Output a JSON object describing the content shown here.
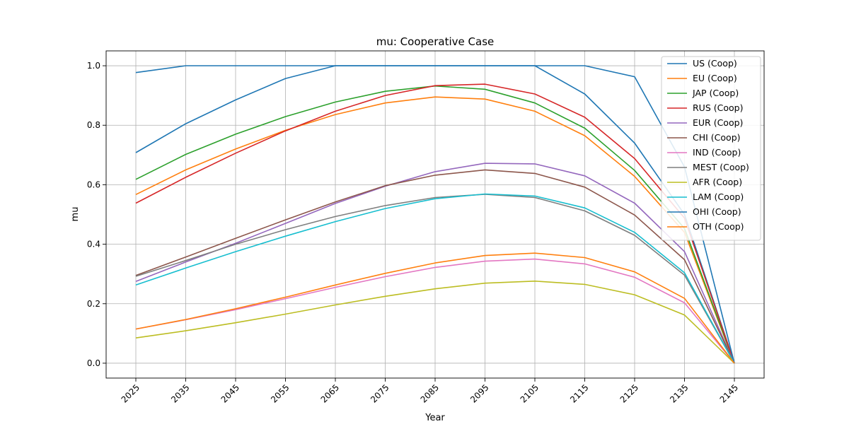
{
  "chart_data": {
    "type": "line",
    "title": "mu: Cooperative Case",
    "xlabel": "Year",
    "ylabel": "mu",
    "x": [
      2025,
      2035,
      2045,
      2055,
      2065,
      2075,
      2085,
      2095,
      2105,
      2115,
      2125,
      2135,
      2145
    ],
    "ylim": [
      -0.05,
      1.05
    ],
    "yticks": [
      0.0,
      0.2,
      0.4,
      0.6,
      0.8,
      1.0
    ],
    "ytick_labels": [
      "0.0",
      "0.2",
      "0.4",
      "0.6",
      "0.8",
      "1.0"
    ],
    "xtick_labels": [
      "2025",
      "2035",
      "2045",
      "2055",
      "2065",
      "2075",
      "2085",
      "2095",
      "2105",
      "2115",
      "2125",
      "2135",
      "2145"
    ],
    "grid": true,
    "legend_position": "top-right",
    "series": [
      {
        "name": "US (Coop)",
        "color": "#1f77b4",
        "values": [
          0.708,
          0.805,
          0.885,
          0.957,
          1.0,
          1.0,
          1.0,
          1.0,
          1.0,
          0.905,
          0.74,
          0.5,
          0.0
        ]
      },
      {
        "name": "EU (Coop)",
        "color": "#ff7f0e",
        "values": [
          0.567,
          0.65,
          0.72,
          0.783,
          0.836,
          0.875,
          0.895,
          0.888,
          0.847,
          0.765,
          0.628,
          0.44,
          0.0
        ]
      },
      {
        "name": "JAP (Coop)",
        "color": "#2ca02c",
        "values": [
          0.618,
          0.702,
          0.77,
          0.829,
          0.878,
          0.914,
          0.932,
          0.921,
          0.875,
          0.79,
          0.648,
          0.453,
          0.0
        ]
      },
      {
        "name": "RUS (Coop)",
        "color": "#d62728",
        "values": [
          0.538,
          0.625,
          0.706,
          0.781,
          0.847,
          0.9,
          0.933,
          0.938,
          0.905,
          0.827,
          0.688,
          0.488,
          0.0
        ]
      },
      {
        "name": "EUR (Coop)",
        "color": "#9467bd",
        "values": [
          0.275,
          0.34,
          0.403,
          0.47,
          0.537,
          0.595,
          0.644,
          0.672,
          0.67,
          0.63,
          0.538,
          0.375,
          0.0
        ]
      },
      {
        "name": "CHI (Coop)",
        "color": "#8c564b",
        "values": [
          0.295,
          0.357,
          0.42,
          0.482,
          0.542,
          0.597,
          0.632,
          0.65,
          0.638,
          0.592,
          0.498,
          0.348,
          0.0
        ]
      },
      {
        "name": "IND (Coop)",
        "color": "#e377c2",
        "values": [
          0.115,
          0.146,
          0.18,
          0.217,
          0.255,
          0.291,
          0.322,
          0.343,
          0.35,
          0.334,
          0.289,
          0.203,
          0.0
        ]
      },
      {
        "name": "MEST (Coop)",
        "color": "#7f7f7f",
        "values": [
          0.292,
          0.345,
          0.4,
          0.449,
          0.493,
          0.53,
          0.557,
          0.568,
          0.557,
          0.512,
          0.43,
          0.296,
          0.0
        ]
      },
      {
        "name": "AFR (Coop)",
        "color": "#bcbd22",
        "values": [
          0.085,
          0.109,
          0.136,
          0.165,
          0.196,
          0.225,
          0.25,
          0.269,
          0.276,
          0.265,
          0.23,
          0.162,
          0.0
        ]
      },
      {
        "name": "LAM (Coop)",
        "color": "#17becf",
        "values": [
          0.263,
          0.32,
          0.375,
          0.427,
          0.476,
          0.52,
          0.553,
          0.569,
          0.562,
          0.522,
          0.44,
          0.304,
          0.0
        ]
      },
      {
        "name": "OHI (Coop)",
        "color": "#1f77b4",
        "values": [
          0.977,
          1.0,
          1.0,
          1.0,
          1.0,
          1.0,
          1.0,
          1.0,
          1.0,
          1.0,
          0.963,
          0.66,
          0.0
        ]
      },
      {
        "name": "OTH (Coop)",
        "color": "#ff7f0e",
        "values": [
          0.115,
          0.147,
          0.183,
          0.222,
          0.263,
          0.302,
          0.337,
          0.362,
          0.37,
          0.355,
          0.307,
          0.218,
          0.0
        ]
      }
    ]
  }
}
